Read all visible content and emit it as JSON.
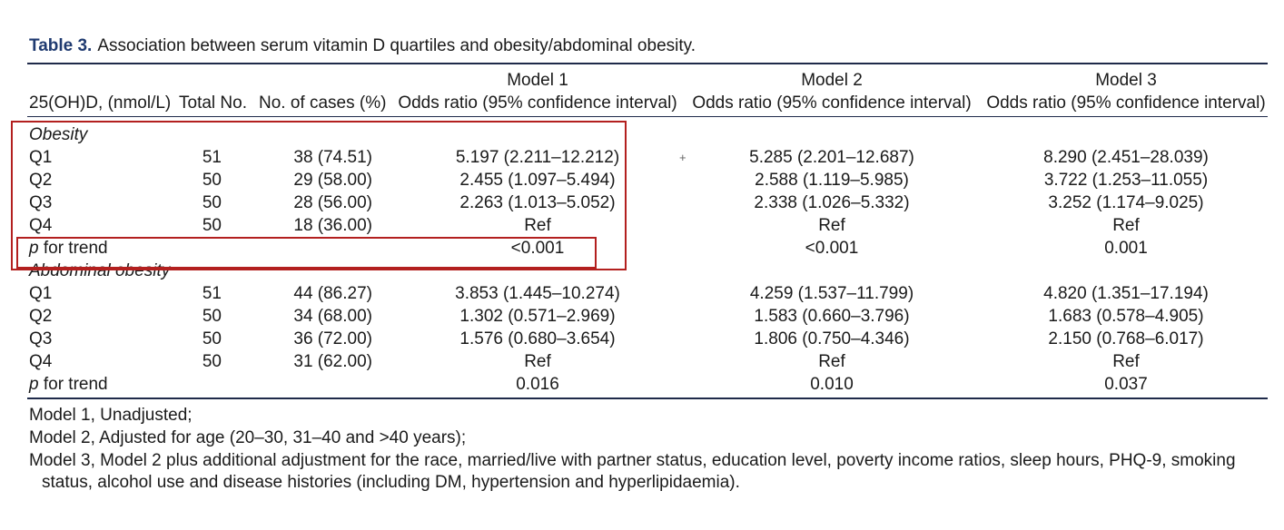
{
  "caption": {
    "label": "Table 3.",
    "text": "Association between serum vitamin D quartiles and obesity/abdominal obesity."
  },
  "header": {
    "col_quartile": "25(OH)D, (nmol/L)",
    "col_total": "Total No.",
    "col_cases": "No. of cases (%)",
    "model1": "Model 1",
    "model2": "Model 2",
    "model3": "Model 3",
    "odds1": "Odds ratio (95% confidence interval)",
    "odds2": "Odds ratio (95% confidence interval)",
    "odds3": "Odds ratio (95% confidence interval)"
  },
  "obesity": {
    "title": "Obesity",
    "rows": [
      {
        "q": "Q1",
        "total": "51",
        "cases": "38 (74.51)",
        "m1": "5.197 (2.211–12.212)",
        "m2": "5.285 (2.201–12.687)",
        "m3": "8.290 (2.451–28.039)"
      },
      {
        "q": "Q2",
        "total": "50",
        "cases": "29 (58.00)",
        "m1": "2.455 (1.097–5.494)",
        "m2": "2.588 (1.119–5.985)",
        "m3": "3.722 (1.253–11.055)"
      },
      {
        "q": "Q3",
        "total": "50",
        "cases": "28 (56.00)",
        "m1": "2.263 (1.013–5.052)",
        "m2": "2.338 (1.026–5.332)",
        "m3": "3.252 (1.174–9.025)"
      },
      {
        "q": "Q4",
        "total": "50",
        "cases": "18 (36.00)",
        "m1": "Ref",
        "m2": "Ref",
        "m3": "Ref"
      }
    ],
    "trend": {
      "p": "p",
      "label": "for trend",
      "m1": "<0.001",
      "m2": "<0.001",
      "m3": "0.001"
    }
  },
  "abdominal": {
    "title": "Abdominal obesity",
    "rows": [
      {
        "q": "Q1",
        "total": "51",
        "cases": "44 (86.27)",
        "m1": "3.853 (1.445–10.274)",
        "m2": "4.259 (1.537–11.799)",
        "m3": "4.820 (1.351–17.194)"
      },
      {
        "q": "Q2",
        "total": "50",
        "cases": "34 (68.00)",
        "m1": "1.302 (0.571–2.969)",
        "m2": "1.583 (0.660–3.796)",
        "m3": "1.683 (0.578–4.905)"
      },
      {
        "q": "Q3",
        "total": "50",
        "cases": "36 (72.00)",
        "m1": "1.576 (0.680–3.654)",
        "m2": "1.806 (0.750–4.346)",
        "m3": "2.150 (0.768–6.017)"
      },
      {
        "q": "Q4",
        "total": "50",
        "cases": "31 (62.00)",
        "m1": "Ref",
        "m2": "Ref",
        "m3": "Ref"
      }
    ],
    "trend": {
      "p": "p",
      "label": "for trend",
      "m1": "0.016",
      "m2": "0.010",
      "m3": "0.037"
    }
  },
  "notes": {
    "n1": "Model 1, Unadjusted;",
    "n2": "Model 2, Adjusted for age (20–30, 31–40 and >40 years);",
    "n3a": "Model 3, Model 2 plus additional adjustment for the race, married/live with partner status, education level, poverty income ratios, sleep hours, PHQ-9, smoking",
    "n3b": "status, alcohol use and disease histories (including DM, hypertension and hyperlipidaemia)."
  },
  "annotation": {
    "plus_mark": "+"
  },
  "colors": {
    "rule": "#1f2a4a",
    "caption_label": "#1f3a70",
    "highlight_box": "#b3201f"
  }
}
